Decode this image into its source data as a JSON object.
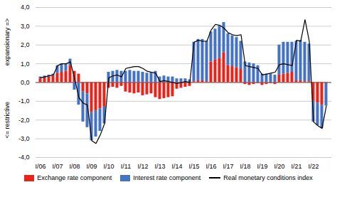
{
  "chart_data": {
    "type": "bar",
    "stacked": true,
    "grid": true,
    "legend": "bottom",
    "annotations": [
      "expansionary =>",
      "<= restrictive"
    ],
    "categories": [
      "I/06",
      null,
      null,
      null,
      "I/07",
      null,
      null,
      null,
      "I/08",
      null,
      null,
      null,
      "I/09",
      null,
      null,
      null,
      "I/10",
      null,
      null,
      null,
      "I/11",
      null,
      null,
      null,
      "I/12",
      null,
      null,
      null,
      "I/13",
      null,
      null,
      null,
      "I/14",
      null,
      null,
      null,
      "I/15",
      null,
      null,
      null,
      "I/16",
      null,
      null,
      null,
      "I/17",
      null,
      null,
      null,
      "I/18",
      null,
      null,
      null,
      "I/19",
      null,
      null,
      null,
      "I/20",
      null,
      null,
      null,
      "I/21",
      null,
      null,
      null,
      "I/22",
      null,
      null,
      null
    ],
    "ylim": [
      -4.0,
      4.0
    ],
    "yticks": [
      {
        "value": -4.0,
        "label": "-4,0"
      },
      {
        "value": -3.0,
        "label": "-3,0"
      },
      {
        "value": -2.0,
        "label": "-2,0"
      },
      {
        "value": -1.0,
        "label": "-1,0"
      },
      {
        "value": 0.0,
        "label": "0,0"
      },
      {
        "value": 1.0,
        "label": "1,0"
      },
      {
        "value": 2.0,
        "label": "2,0"
      },
      {
        "value": 3.0,
        "label": "3,0"
      },
      {
        "value": 4.0,
        "label": "4,0"
      }
    ],
    "series": [
      {
        "name": "Exchange rate component",
        "type": "bar",
        "color": "#e8231a",
        "values": [
          0.2,
          0.25,
          0.3,
          0.35,
          0.5,
          0.55,
          0.6,
          0.9,
          0.6,
          0.45,
          -0.5,
          -0.6,
          -1.6,
          -1.5,
          -1.4,
          -1.3,
          -0.3,
          -0.25,
          -0.3,
          -0.2,
          -0.5,
          -0.55,
          -0.6,
          -0.55,
          -0.7,
          -0.65,
          -0.6,
          -0.8,
          -0.9,
          -0.85,
          -0.8,
          -0.75,
          -0.35,
          -0.3,
          -0.25,
          -0.2,
          0.05,
          0.1,
          0.1,
          0.05,
          1.1,
          1.2,
          1.3,
          1.6,
          0.9,
          0.85,
          0.8,
          0.7,
          -0.1,
          -0.15,
          -0.1,
          -0.05,
          -0.15,
          -0.1,
          -0.05,
          -0.1,
          0.4,
          0.45,
          0.5,
          0.55,
          0.1,
          0.1,
          0.05,
          0.05,
          -1.0,
          -1.1,
          -1.2,
          -0.05
        ]
      },
      {
        "name": "Interest rate component",
        "type": "bar",
        "color": "#4472c4",
        "values": [
          0.1,
          0.1,
          0.1,
          0.1,
          0.4,
          0.45,
          0.4,
          0.35,
          -0.4,
          -1.2,
          -1.6,
          -1.8,
          -1.5,
          -1.4,
          -1.2,
          -0.9,
          0.55,
          0.6,
          0.65,
          0.6,
          0.6,
          0.65,
          0.6,
          0.6,
          0.55,
          0.5,
          0.55,
          0.6,
          0.3,
          0.35,
          0.3,
          0.3,
          0.2,
          0.2,
          0.2,
          0.15,
          2.1,
          2.2,
          2.2,
          2.15,
          1.6,
          1.65,
          1.7,
          1.6,
          1.7,
          1.65,
          1.6,
          1.5,
          1.1,
          1.05,
          1.0,
          0.9,
          0.45,
          0.45,
          0.45,
          0.4,
          1.6,
          1.7,
          1.65,
          1.6,
          2.1,
          2.15,
          2.1,
          2.0,
          -1.1,
          -1.2,
          -1.25,
          -1.2
        ]
      },
      {
        "name": "Real monetary conditions index",
        "type": "line",
        "color": "#000000",
        "values": [
          0.25,
          0.3,
          0.35,
          0.4,
          0.9,
          1.0,
          1.0,
          1.1,
          0.2,
          -0.8,
          -1.1,
          -1.2,
          -3.1,
          -3.25,
          -2.8,
          -2.2,
          0.25,
          0.35,
          0.4,
          0.3,
          0.75,
          0.8,
          0.85,
          0.85,
          0.75,
          0.6,
          0.55,
          0.5,
          0.05,
          0.1,
          0.05,
          0.0,
          -0.05,
          0.0,
          0.05,
          0.0,
          2.15,
          2.25,
          2.2,
          2.2,
          2.8,
          3.1,
          3.05,
          2.9,
          2.65,
          2.55,
          2.5,
          2.55,
          0.9,
          0.85,
          0.8,
          0.75,
          0.4,
          0.45,
          0.5,
          0.55,
          0.95,
          1.0,
          0.95,
          0.9,
          2.25,
          2.2,
          3.35,
          2.2,
          -2.1,
          -2.3,
          -2.45,
          -1.25
        ]
      }
    ]
  }
}
